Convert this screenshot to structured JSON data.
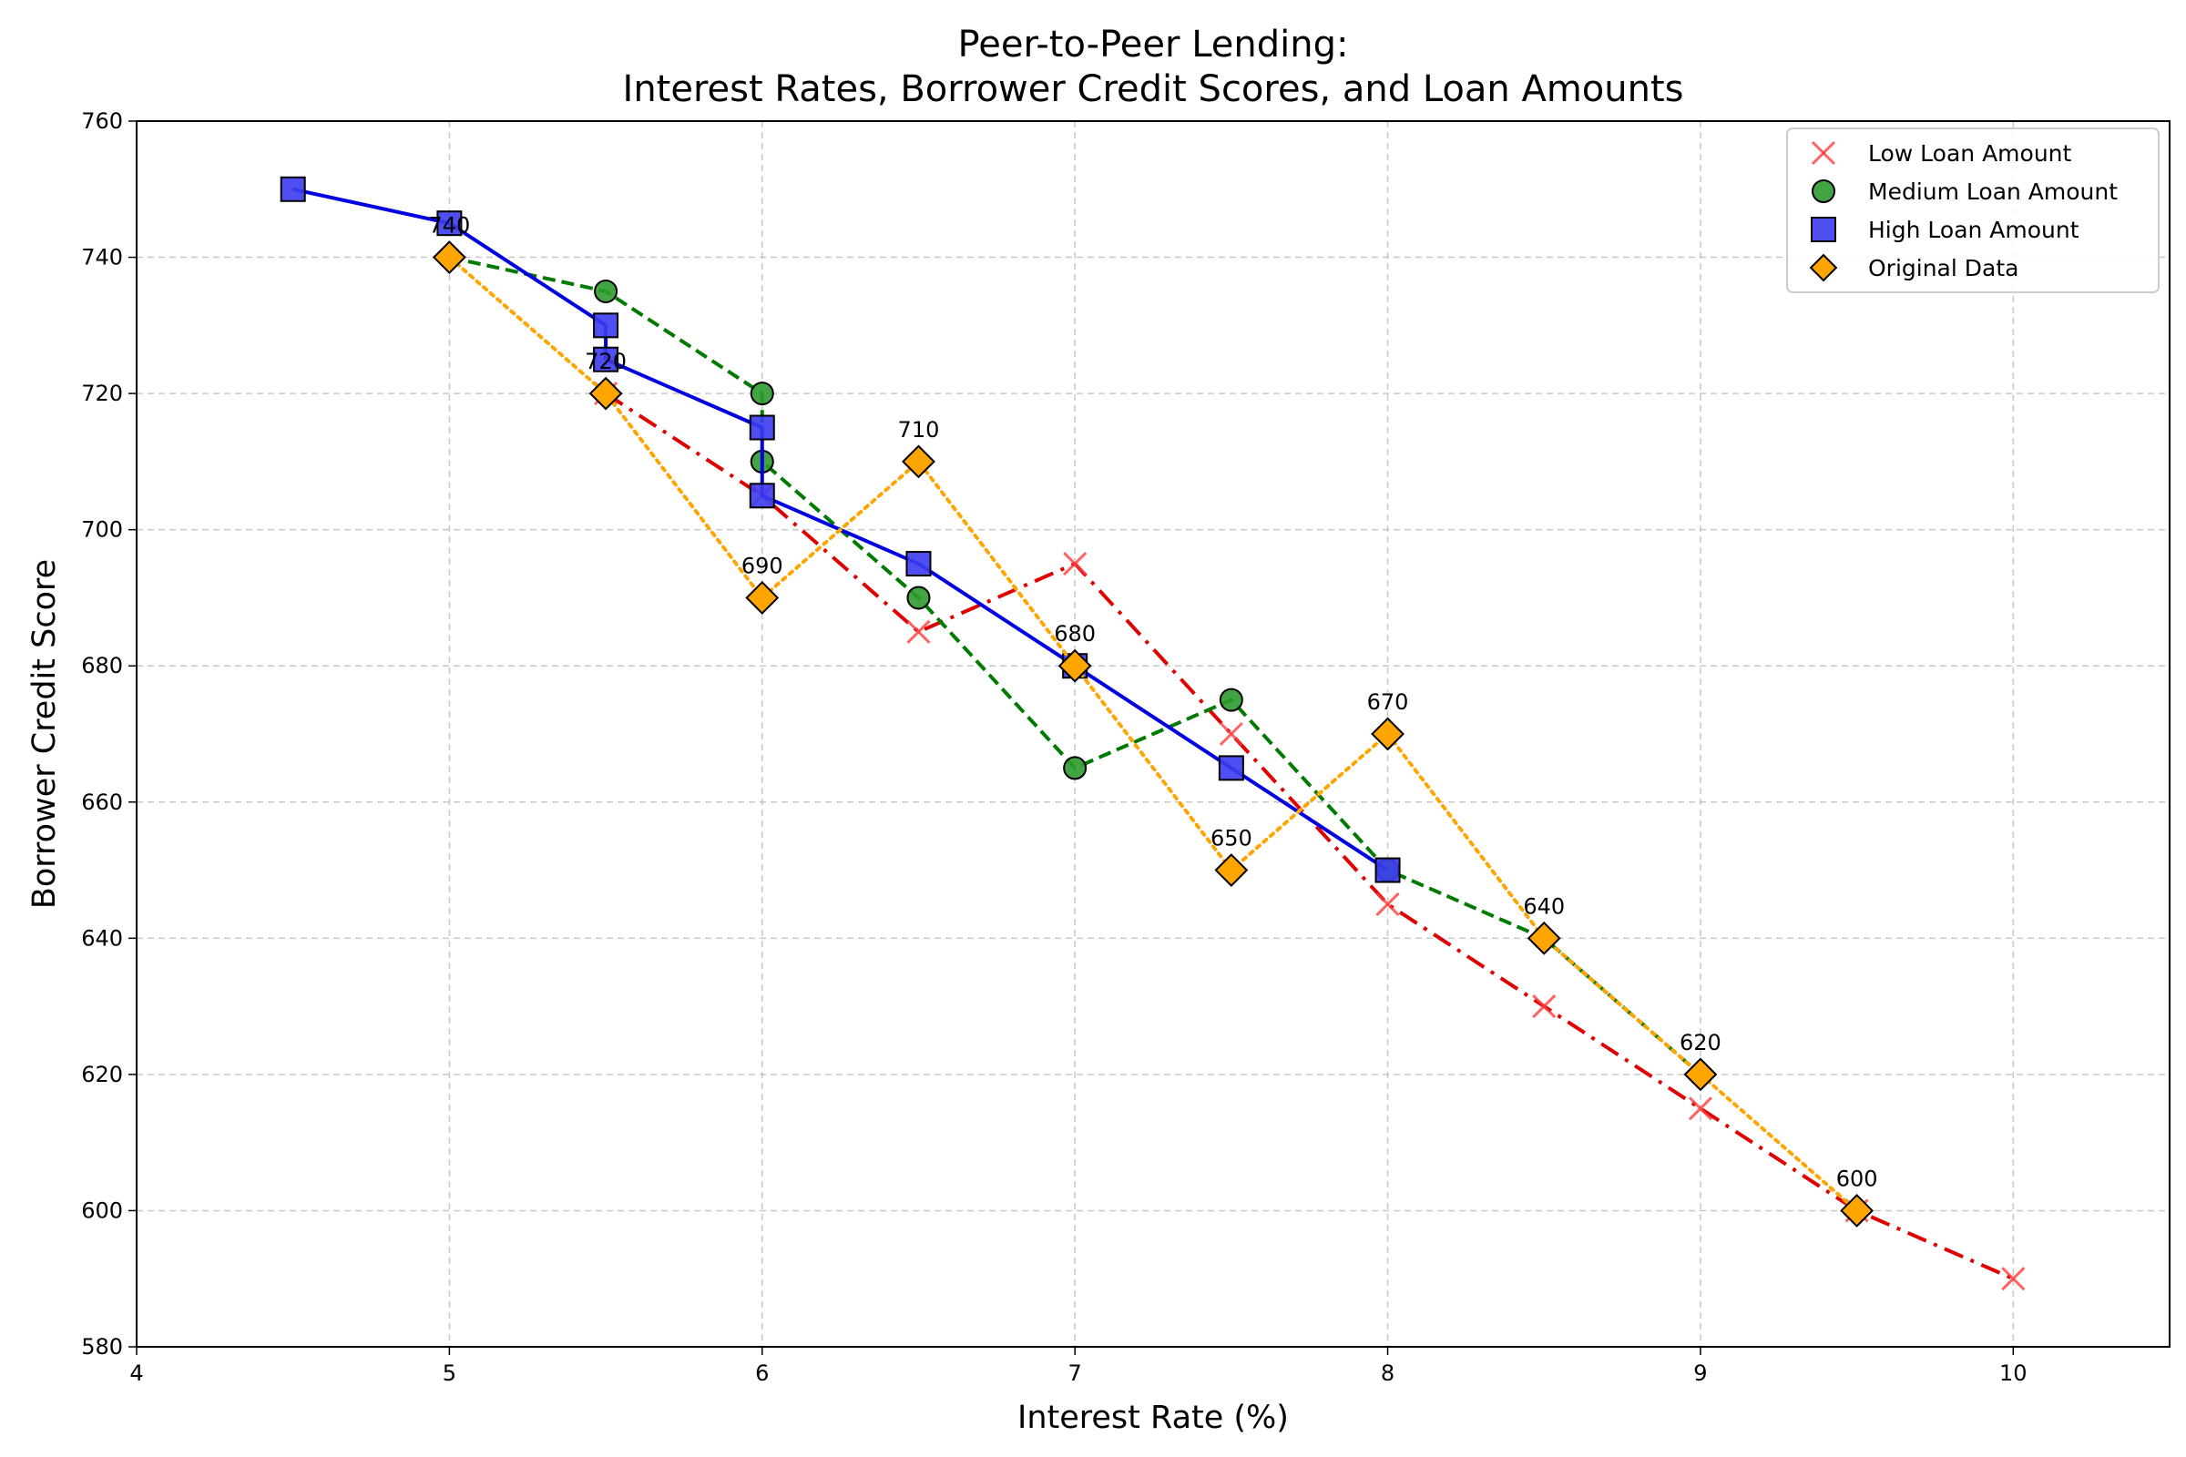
{
  "chart_data": {
    "type": "line",
    "title_line1": "Peer-to-Peer Lending:",
    "title_line2": "Interest Rates, Borrower Credit Scores, and Loan Amounts",
    "xlabel": "Interest Rate (%)",
    "ylabel": "Borrower Credit Score",
    "xlim": [
      4,
      10.5
    ],
    "ylim": [
      580,
      760
    ],
    "xticks": [
      4,
      5,
      6,
      7,
      8,
      9,
      10
    ],
    "yticks": [
      580,
      600,
      620,
      640,
      660,
      680,
      700,
      720,
      740,
      760
    ],
    "grid": true,
    "legend_position": "top-right",
    "series": [
      {
        "name": "Low Loan Amount",
        "marker": "x",
        "line_style": "dash-dot",
        "marker_color": "#ff3b3b",
        "line_color": "#e00000",
        "x": [
          5.5,
          6,
          6.5,
          7,
          7.5,
          8,
          8.5,
          9,
          9.5,
          10
        ],
        "y": [
          720,
          705,
          685,
          695,
          670,
          645,
          630,
          615,
          600,
          590
        ]
      },
      {
        "name": "Medium Loan Amount",
        "marker": "circle",
        "line_style": "dashed",
        "marker_color": "#2e9a2e",
        "line_color": "#007a00",
        "x": [
          5,
          5.5,
          6,
          6,
          6.5,
          7,
          7.5,
          8,
          8.5,
          9
        ],
        "y": [
          740,
          735,
          720,
          710,
          690,
          665,
          675,
          650,
          640,
          620
        ]
      },
      {
        "name": "High Loan Amount",
        "marker": "square",
        "line_style": "solid",
        "marker_color": "#3c3cf0",
        "line_color": "#0000e0",
        "x": [
          4.5,
          5,
          5.5,
          5.5,
          6,
          6,
          6.5,
          7,
          7.5,
          8
        ],
        "y": [
          750,
          745,
          730,
          725,
          715,
          705,
          695,
          680,
          665,
          650
        ]
      },
      {
        "name": "Original Data",
        "marker": "diamond",
        "line_style": "dotted",
        "marker_color": "#ffa500",
        "line_color": "#ffa500",
        "x": [
          5,
          5.5,
          6,
          6.5,
          7,
          7.5,
          8,
          8.5,
          9,
          9.5
        ],
        "y": [
          740,
          720,
          690,
          710,
          680,
          650,
          670,
          640,
          620,
          600
        ],
        "labels": [
          "740",
          "720",
          "690",
          "710",
          "680",
          "650",
          "670",
          "640",
          "620",
          "600"
        ]
      }
    ]
  }
}
